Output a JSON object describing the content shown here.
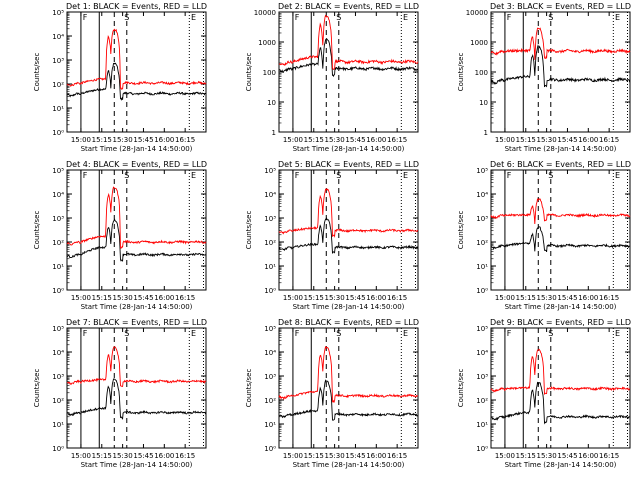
{
  "chart_data": [
    {
      "type": "line",
      "title": "Det 1: BLACK = Events, RED = LLD",
      "xlabel": "Start Time (28-Jan-14 14:50:00)",
      "ylabel": "Counts/sec",
      "log_y": true,
      "ylim": [
        1,
        100000
      ],
      "ytick_labels": [
        "10⁰",
        "10¹",
        "10²",
        "10³",
        "10⁴",
        "10⁵"
      ],
      "xtick_labels": [
        "15:00",
        "15:15",
        "15:30",
        "15:45",
        "16:00",
        "16:15"
      ],
      "xlim_hours": [
        14.833,
        16.5
      ],
      "markers": {
        "solid": [
          15.0,
          15.22
        ],
        "dashed": [
          15.4,
          15.55
        ],
        "dotted": [
          16.3,
          16.47
        ]
      },
      "marker_labels": {
        "F": 15.05,
        "S": 15.55,
        "E": 16.35
      },
      "series": [
        {
          "name": "Events",
          "color": "#000000",
          "base": 40,
          "pre": 60,
          "peak": 700
        },
        {
          "name": "LLD",
          "color": "#ff0000",
          "base": 110,
          "pre": 160,
          "peak": 18000
        }
      ]
    },
    {
      "type": "line",
      "title": "Det 2: BLACK = Events, RED = LLD",
      "xlabel": "Start Time (28-Jan-14 14:50:00)",
      "ylabel": "Counts/sec",
      "log_y": true,
      "ylim": [
        1,
        10000
      ],
      "ytick_labels": [
        "1",
        "10",
        "100",
        "1000",
        "10000"
      ],
      "xtick_labels": [
        "15:00",
        "15:15",
        "15:30",
        "15:45",
        "16:00",
        "16:15"
      ],
      "xlim_hours": [
        14.833,
        16.5
      ],
      "markers": {
        "solid": [
          15.0,
          15.22
        ],
        "dashed": [
          15.4,
          15.55
        ],
        "dotted": [
          16.3,
          16.47
        ]
      },
      "marker_labels": {
        "F": 15.05,
        "S": 15.55,
        "E": 16.35
      },
      "series": [
        {
          "name": "Events",
          "color": "#000000",
          "base": 130,
          "pre": 180,
          "peak": 1200
        },
        {
          "name": "LLD",
          "color": "#ff0000",
          "base": 220,
          "pre": 320,
          "peak": 7500
        }
      ]
    },
    {
      "type": "line",
      "title": "Det 3: BLACK = Events, RED = LLD",
      "xlabel": "Start Time (28-Jan-14 14:50:00)",
      "ylabel": "Counts/sec",
      "log_y": true,
      "ylim": [
        1,
        10000
      ],
      "ytick_labels": [
        "1",
        "10",
        "100",
        "1000",
        "10000"
      ],
      "xtick_labels": [
        "15:00",
        "15:15",
        "15:30",
        "15:45",
        "16:00",
        "16:15"
      ],
      "xlim_hours": [
        14.833,
        16.5
      ],
      "markers": {
        "solid": [
          15.0,
          15.22
        ],
        "dashed": [
          15.4,
          15.55
        ],
        "dotted": [
          16.3,
          16.47
        ]
      },
      "marker_labels": {
        "F": 15.05,
        "S": 15.55,
        "E": 16.35
      },
      "series": [
        {
          "name": "Events",
          "color": "#000000",
          "base": 55,
          "pre": 70,
          "peak": 700
        },
        {
          "name": "LLD",
          "color": "#ff0000",
          "base": 500,
          "pre": 520,
          "peak": 2800
        }
      ]
    },
    {
      "type": "line",
      "title": "Det 4: BLACK = Events, RED = LLD",
      "xlabel": "Start Time (28-Jan-14 14:50:00)",
      "ylabel": "Counts/sec",
      "log_y": true,
      "ylim": [
        1,
        100000
      ],
      "ytick_labels": [
        "10⁰",
        "10¹",
        "10²",
        "10³",
        "10⁴",
        "10⁵"
      ],
      "xtick_labels": [
        "15:00",
        "15:15",
        "15:30",
        "15:45",
        "16:00",
        "16:15"
      ],
      "xlim_hours": [
        14.833,
        16.5
      ],
      "markers": {
        "solid": [
          15.0,
          15.22
        ],
        "dashed": [
          15.4,
          15.55
        ],
        "dotted": [
          16.3,
          16.47
        ]
      },
      "marker_labels": {
        "F": 15.05,
        "S": 15.55,
        "E": 16.35
      },
      "series": [
        {
          "name": "Events",
          "color": "#000000",
          "base": 30,
          "pre": 60,
          "peak": 800
        },
        {
          "name": "LLD",
          "color": "#ff0000",
          "base": 100,
          "pre": 170,
          "peak": 18000
        }
      ]
    },
    {
      "type": "line",
      "title": "Det 5: BLACK = Events, RED = LLD",
      "xlabel": "Start Time (28-Jan-14 14:50:00)",
      "ylabel": "Counts/sec",
      "log_y": true,
      "ylim": [
        1,
        100000
      ],
      "ytick_labels": [
        "10⁰",
        "10¹",
        "10²",
        "10³",
        "10⁴",
        "10⁵"
      ],
      "xtick_labels": [
        "15:00",
        "15:15",
        "15:30",
        "15:45",
        "16:00",
        "16:15"
      ],
      "xlim_hours": [
        14.833,
        16.5
      ],
      "markers": {
        "solid": [
          15.0,
          15.22
        ],
        "dashed": [
          15.4,
          15.55
        ],
        "dotted": [
          16.3,
          16.47
        ]
      },
      "marker_labels": {
        "F": 15.05,
        "S": 15.55,
        "E": 16.35
      },
      "series": [
        {
          "name": "Events",
          "color": "#000000",
          "base": 60,
          "pre": 80,
          "peak": 900
        },
        {
          "name": "LLD",
          "color": "#ff0000",
          "base": 300,
          "pre": 380,
          "peak": 15000
        }
      ]
    },
    {
      "type": "line",
      "title": "Det 6: BLACK = Events, RED = LLD",
      "xlabel": "Start Time (28-Jan-14 14:50:00)",
      "ylabel": "Counts/sec",
      "log_y": true,
      "ylim": [
        1,
        100000
      ],
      "ytick_labels": [
        "10⁰",
        "10¹",
        "10²",
        "10³",
        "10⁴",
        "10⁵"
      ],
      "xtick_labels": [
        "15:00",
        "15:15",
        "15:30",
        "15:45",
        "16:00",
        "16:15"
      ],
      "xlim_hours": [
        14.833,
        16.5
      ],
      "markers": {
        "solid": [
          15.0,
          15.22
        ],
        "dashed": [
          15.4,
          15.55
        ],
        "dotted": [
          16.3,
          16.47
        ]
      },
      "marker_labels": {
        "F": 15.05,
        "S": 15.55,
        "E": 16.35
      },
      "series": [
        {
          "name": "Events",
          "color": "#000000",
          "base": 70,
          "pre": 90,
          "peak": 400
        },
        {
          "name": "LLD",
          "color": "#ff0000",
          "base": 1300,
          "pre": 1350,
          "peak": 6000
        }
      ]
    },
    {
      "type": "line",
      "title": "Det 7: BLACK = Events, RED = LLD",
      "xlabel": "Start Time (28-Jan-14 14:50:00)",
      "ylabel": "Counts/sec",
      "log_y": true,
      "ylim": [
        1,
        100000
      ],
      "ytick_labels": [
        "10⁰",
        "10¹",
        "10²",
        "10³",
        "10⁴",
        "10⁵"
      ],
      "xtick_labels": [
        "15:00",
        "15:15",
        "15:30",
        "15:45",
        "16:00",
        "16:15"
      ],
      "xlim_hours": [
        14.833,
        16.5
      ],
      "markers": {
        "solid": [
          15.0,
          15.22
        ],
        "dashed": [
          15.4,
          15.55
        ],
        "dotted": [
          16.3,
          16.47
        ]
      },
      "marker_labels": {
        "F": 15.05,
        "S": 15.55,
        "E": 16.35
      },
      "series": [
        {
          "name": "Events",
          "color": "#000000",
          "base": 30,
          "pre": 45,
          "peak": 700
        },
        {
          "name": "LLD",
          "color": "#ff0000",
          "base": 600,
          "pre": 700,
          "peak": 15000
        }
      ]
    },
    {
      "type": "line",
      "title": "Det 8: BLACK = Events, RED = LLD",
      "xlabel": "Start Time (28-Jan-14 14:50:00)",
      "ylabel": "Counts/sec",
      "log_y": true,
      "ylim": [
        1,
        100000
      ],
      "ytick_labels": [
        "10⁰",
        "10¹",
        "10²",
        "10³",
        "10⁴",
        "10⁵"
      ],
      "xtick_labels": [
        "15:00",
        "15:15",
        "15:30",
        "15:45",
        "16:00",
        "16:15"
      ],
      "xlim_hours": [
        14.833,
        16.5
      ],
      "markers": {
        "solid": [
          15.0,
          15.22
        ],
        "dashed": [
          15.4,
          15.55
        ],
        "dotted": [
          16.3,
          16.47
        ]
      },
      "marker_labels": {
        "F": 15.05,
        "S": 15.55,
        "E": 16.35
      },
      "series": [
        {
          "name": "Events",
          "color": "#000000",
          "base": 25,
          "pre": 35,
          "peak": 600
        },
        {
          "name": "LLD",
          "color": "#ff0000",
          "base": 150,
          "pre": 220,
          "peak": 15000
        }
      ]
    },
    {
      "type": "line",
      "title": "Det 9: BLACK = Events, RED = LLD",
      "xlabel": "Start Time (28-Jan-14 14:50:00)",
      "ylabel": "Counts/sec",
      "log_y": true,
      "ylim": [
        1,
        100000
      ],
      "ytick_labels": [
        "10⁰",
        "10¹",
        "10²",
        "10³",
        "10⁴",
        "10⁵"
      ],
      "xtick_labels": [
        "15:00",
        "15:15",
        "15:30",
        "15:45",
        "16:00",
        "16:15"
      ],
      "xlim_hours": [
        14.833,
        16.5
      ],
      "markers": {
        "solid": [
          15.0,
          15.22
        ],
        "dashed": [
          15.4,
          15.55
        ],
        "dotted": [
          16.3,
          16.47
        ]
      },
      "marker_labels": {
        "F": 15.05,
        "S": 15.55,
        "E": 16.35
      },
      "series": [
        {
          "name": "Events",
          "color": "#000000",
          "base": 20,
          "pre": 30,
          "peak": 500
        },
        {
          "name": "LLD",
          "color": "#ff0000",
          "base": 300,
          "pre": 320,
          "peak": 12000
        }
      ]
    }
  ]
}
